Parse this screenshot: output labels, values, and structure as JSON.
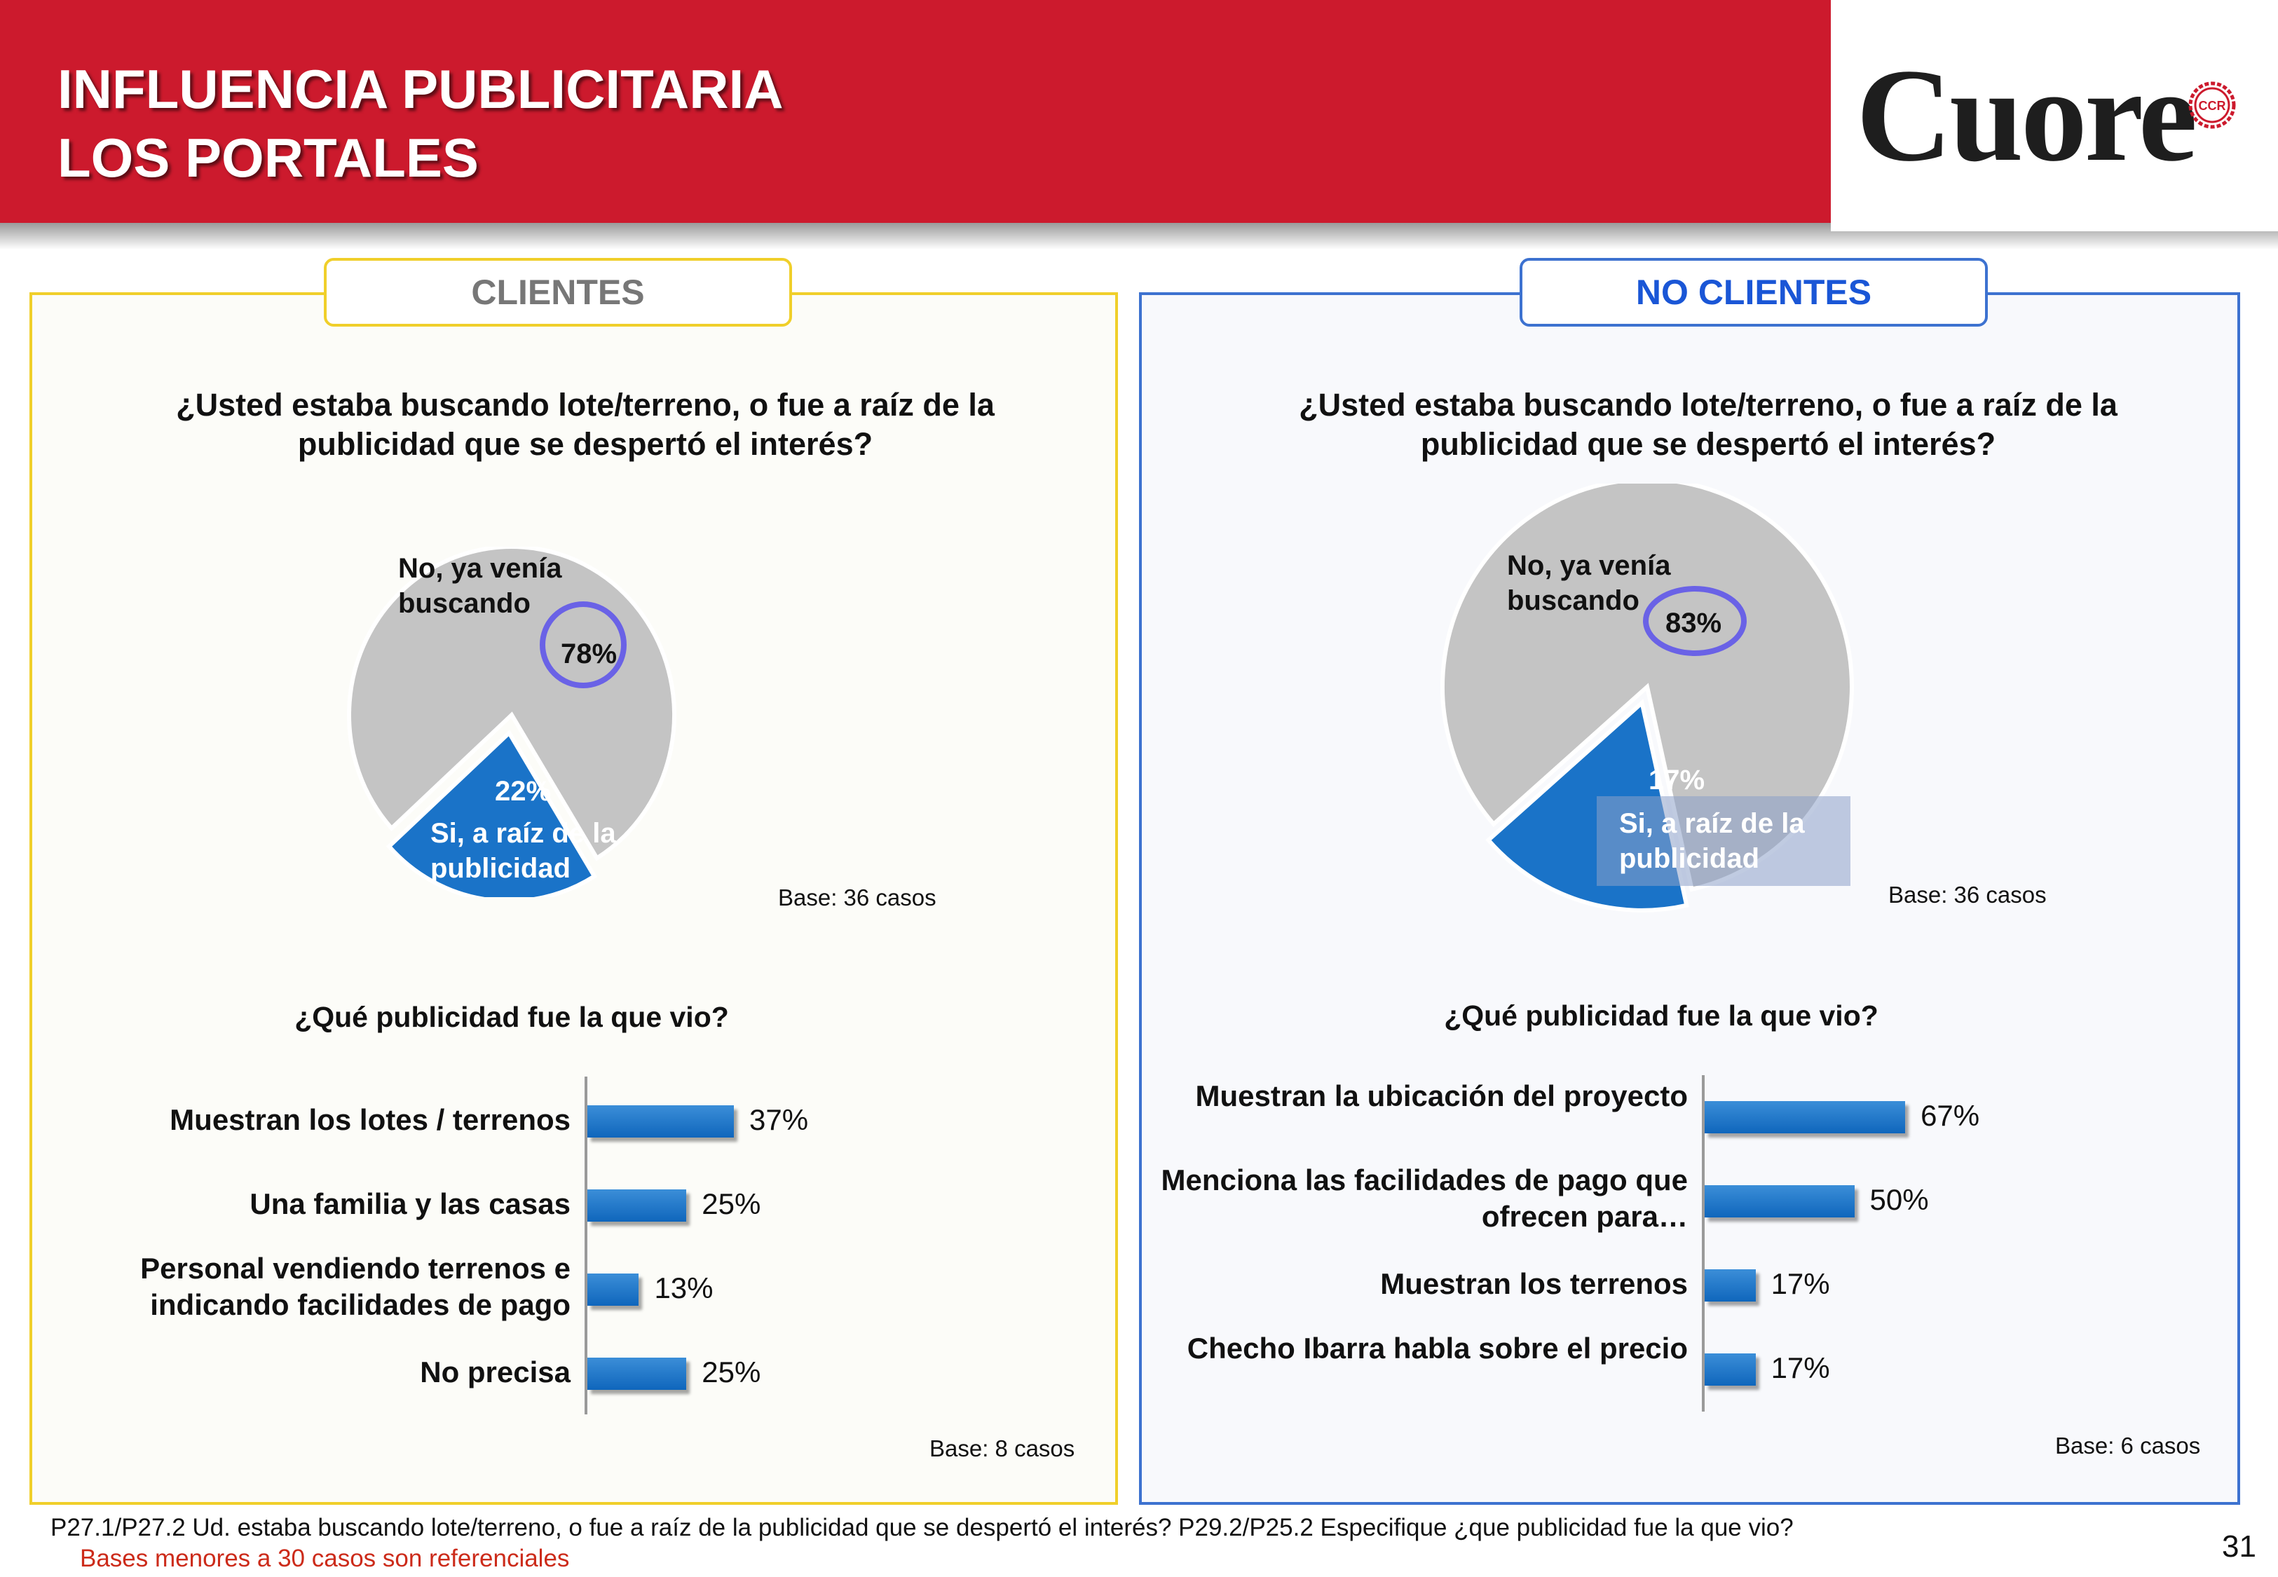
{
  "header": {
    "title_line1": "INFLUENCIA PUBLICITARIA",
    "title_line2": "LOS PORTALES",
    "logo_text": "Cuore",
    "logo_badge": "CCR"
  },
  "colors": {
    "header_red": "#cc1a2d",
    "pie_gray": "#c4c4c4",
    "pie_blue": "#1a73c8",
    "highlight_circle": "#6a62e6",
    "clientes_border": "#f0cf2a",
    "no_clientes_border": "#3d72d0",
    "note_red": "#cc2b1a"
  },
  "left_panel": {
    "tab": "CLIENTES",
    "question": "¿Usted estaba buscando lote/terreno, o fue a raíz de la publicidad que se despertó el interés?",
    "pie_label_no": "No, ya venía buscando",
    "pie_label_si": "Si, a raíz de la publicidad",
    "pie_base": "Base: 36 casos",
    "bar_question": "¿Qué publicidad  fue la que vio?",
    "bar_base": "Base: 8 casos"
  },
  "right_panel": {
    "tab": "NO CLIENTES",
    "question": "¿Usted estaba buscando lote/terreno, o fue a raíz de la publicidad que se despertó el interés?",
    "pie_label_no": "No, ya venía buscando",
    "pie_label_si": "Si, a raíz de la publicidad",
    "pie_base": "Base: 36 casos",
    "bar_question": "¿Qué publicidad  fue la que vio?",
    "bar_base": "Base: 6 casos"
  },
  "chart_data": [
    {
      "type": "pie",
      "panel": "CLIENTES",
      "categories": [
        "No, ya venía buscando",
        "Si, a raíz de la publicidad"
      ],
      "values": [
        78,
        22
      ],
      "labels": [
        "78%",
        "22%"
      ]
    },
    {
      "type": "bar",
      "panel": "CLIENTES",
      "orientation": "horizontal",
      "categories": [
        "Muestran los lotes / terrenos",
        "Una familia y las casas",
        "Personal vendiendo terrenos e indicando facilidades de pago",
        "No precisa"
      ],
      "values": [
        37,
        25,
        13,
        25
      ],
      "labels": [
        "37%",
        "25%",
        "13%",
        "25%"
      ],
      "xlim": [
        0,
        100
      ]
    },
    {
      "type": "pie",
      "panel": "NO CLIENTES",
      "categories": [
        "No, ya venía buscando",
        "Si, a raíz de la publicidad"
      ],
      "values": [
        83,
        17
      ],
      "labels": [
        "83%",
        "17%"
      ]
    },
    {
      "type": "bar",
      "panel": "NO CLIENTES",
      "orientation": "horizontal",
      "categories": [
        "Muestran la ubicación del proyecto",
        "Menciona las facilidades de pago que ofrecen para…",
        "Muestran los terrenos",
        "Checho Ibarra habla sobre el precio"
      ],
      "values": [
        67,
        50,
        17,
        17
      ],
      "labels": [
        "67%",
        "50%",
        "17%",
        "17%"
      ],
      "xlim": [
        0,
        100
      ]
    }
  ],
  "footer": {
    "note": "P27.1/P27.2 Ud. estaba buscando lote/terreno, o fue a raíz de la publicidad que  se despertó el interés?  P29.2/P25.2 Especifique ¿que publicidad  fue la que vio?",
    "note2": "Bases menores a 30 casos son referenciales",
    "page": "31"
  }
}
